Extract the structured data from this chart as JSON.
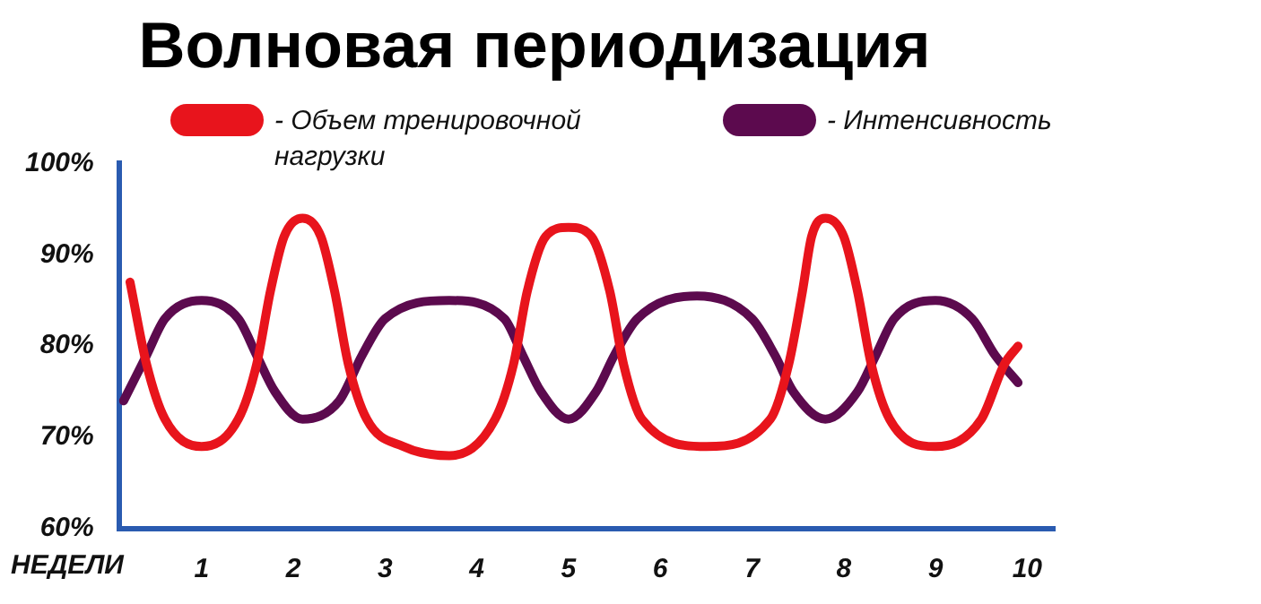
{
  "chart_data": {
    "type": "line",
    "title": "Волновая периодизация",
    "xlabel": "НЕДЕЛИ",
    "xlim": [
      0.1,
      10.3
    ],
    "xticks": [
      1,
      2,
      3,
      4,
      5,
      6,
      7,
      8,
      9,
      10
    ],
    "ylim": [
      60,
      100
    ],
    "yticks": [
      {
        "value": 60,
        "label": "60%"
      },
      {
        "value": 70,
        "label": "70%"
      },
      {
        "value": 80,
        "label": "80%"
      },
      {
        "value": 90,
        "label": "90%"
      },
      {
        "value": 100,
        "label": "100%"
      }
    ],
    "grid": false,
    "legend": "top",
    "marker": "none",
    "line_style": "solid",
    "series": [
      {
        "name": "- Объем тренировочной нагрузки",
        "color": "#e8141c",
        "x": [
          0.22,
          0.4,
          0.6,
          1.0,
          1.4,
          1.6,
          1.75,
          1.9,
          2.1,
          2.3,
          2.45,
          2.6,
          2.8,
          3.2,
          3.7,
          4.2,
          4.4,
          4.55,
          4.75,
          5.0,
          5.25,
          5.45,
          5.6,
          5.8,
          6.5,
          7.2,
          7.4,
          7.55,
          7.65,
          7.8,
          8.0,
          8.15,
          8.3,
          8.5,
          9.0,
          9.5,
          9.75,
          9.9
        ],
        "values": [
          87,
          78,
          72,
          69,
          72,
          78,
          86,
          92,
          94,
          92,
          86,
          78,
          72,
          69,
          68,
          72,
          78,
          86,
          92,
          93,
          92,
          86,
          78,
          72,
          69,
          72,
          78,
          86,
          92,
          94,
          92,
          86,
          78,
          72,
          69,
          72,
          78,
          80
        ]
      },
      {
        "name": "- Интенсивность",
        "color": "#5c0a4e",
        "x": [
          0.15,
          0.4,
          0.6,
          1.0,
          1.4,
          1.6,
          1.8,
          2.1,
          2.5,
          2.75,
          3.0,
          3.7,
          4.3,
          4.5,
          4.7,
          5.0,
          5.3,
          5.5,
          5.75,
          6.4,
          7.0,
          7.25,
          7.45,
          7.8,
          8.15,
          8.35,
          8.55,
          9.0,
          9.4,
          9.65,
          9.9
        ],
        "values": [
          74,
          79,
          83,
          85,
          83,
          79,
          75,
          72,
          74,
          79,
          83,
          85,
          83,
          79,
          75,
          72,
          75,
          79,
          83,
          85.5,
          83,
          79,
          75,
          72,
          75,
          79,
          83,
          85,
          83,
          79,
          76
        ]
      }
    ]
  }
}
